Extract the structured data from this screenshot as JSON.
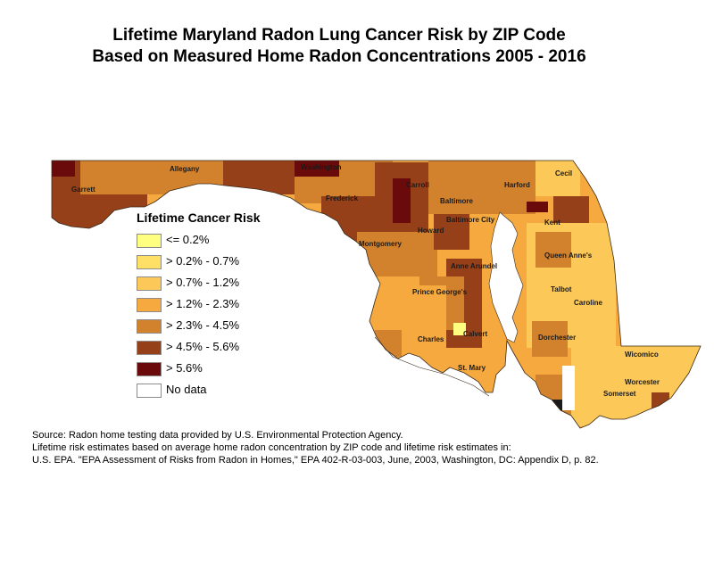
{
  "title": {
    "line1": "Lifetime Maryland Radon Lung Cancer Risk by ZIP Code",
    "line2": "Based on Measured Home Radon Concentrations 2005 - 2016"
  },
  "legend": {
    "title": "Lifetime Cancer Risk",
    "items": [
      {
        "label": "<= 0.2%",
        "color": "#ffff80"
      },
      {
        "label": "> 0.2% - 0.7%",
        "color": "#ffe066"
      },
      {
        "label": "> 0.7% - 1.2%",
        "color": "#fcc858"
      },
      {
        "label": "> 1.2% - 2.3%",
        "color": "#f5a93e"
      },
      {
        "label": "> 2.3% - 4.5%",
        "color": "#d2822d"
      },
      {
        "label": "> 4.5% - 5.6%",
        "color": "#96401a"
      },
      {
        "label": "> 5.6%",
        "color": "#6b0a0a"
      },
      {
        "label": "No data",
        "color": "#ffffff"
      }
    ]
  },
  "counties": [
    "Garrett",
    "Allegany",
    "Washington",
    "Frederick",
    "Carroll",
    "Baltimore",
    "Harford",
    "Cecil",
    "Baltimore City",
    "Kent",
    "Howard",
    "Montgomery",
    "Anne Arundel",
    "Queen Anne's",
    "Prince George's",
    "Talbot",
    "Caroline",
    "Calvert",
    "Charles",
    "Dorchester",
    "St. Mary",
    "Wicomico",
    "Worcester",
    "Somerset"
  ],
  "source": {
    "line1": "Source:  Radon home testing data provided by U.S. Environmental Protection Agency.",
    "line2": "Lifetime risk estimates based on average home radon concentration by ZIP code and lifetime risk estimates in:",
    "line3": "U.S. EPA. \"EPA Assessment of Risks from Radon in Homes,\" EPA 402-R-03-003, June, 2003, Washington, DC: Appendix D, p. 82."
  }
}
